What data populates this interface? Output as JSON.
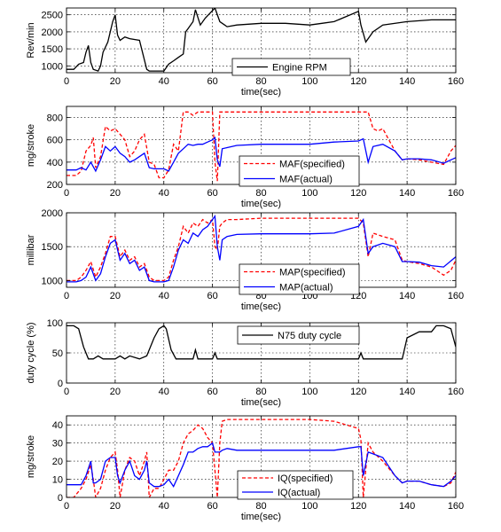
{
  "chart_data": [
    {
      "type": "line",
      "xlabel": "time(sec)",
      "ylabel": "Rev/min",
      "xlim": [
        0,
        160
      ],
      "ylim": [
        800,
        2700
      ],
      "xticks": [
        0,
        20,
        40,
        60,
        80,
        100,
        120,
        140,
        160
      ],
      "yticks": [
        1000,
        1500,
        2000,
        2500
      ],
      "grid": true,
      "legend_position": "bottom-center",
      "series": [
        {
          "name": "Engine RPM",
          "color": "#000000",
          "dash": "solid",
          "x": [
            0,
            3,
            5,
            7,
            8,
            9,
            10,
            11,
            13,
            14,
            15,
            17,
            19,
            20,
            21,
            22,
            24,
            26,
            30,
            33,
            34,
            37,
            40,
            42,
            44,
            46,
            48,
            49,
            50,
            52,
            53,
            55,
            57,
            59,
            61,
            63,
            66,
            70,
            80,
            90,
            100,
            105,
            110,
            115,
            120,
            121,
            123,
            126,
            130,
            140,
            150,
            160
          ],
          "y": [
            900,
            900,
            1050,
            1100,
            1400,
            1600,
            1100,
            900,
            850,
            1000,
            1400,
            1700,
            2300,
            2500,
            1900,
            1750,
            1850,
            1800,
            1750,
            900,
            850,
            850,
            850,
            1050,
            1150,
            1250,
            1350,
            2000,
            2100,
            2300,
            2650,
            2200,
            2400,
            2550,
            2700,
            2300,
            2150,
            2200,
            2250,
            2250,
            2200,
            2250,
            2300,
            2450,
            2600,
            2200,
            1700,
            2000,
            2200,
            2300,
            2350,
            2350
          ]
        }
      ]
    },
    {
      "type": "line",
      "xlabel": "time(sec)",
      "ylabel": "mg/stroke",
      "xlim": [
        0,
        160
      ],
      "ylim": [
        200,
        900
      ],
      "xticks": [
        0,
        20,
        40,
        60,
        80,
        100,
        120,
        140,
        160
      ],
      "yticks": [
        200,
        400,
        600,
        800
      ],
      "grid": true,
      "legend_position": "bottom-center",
      "series": [
        {
          "name": "MAF(specified)",
          "color": "#ff0000",
          "dash": "dashed",
          "x": [
            0,
            4,
            6,
            8,
            10,
            11,
            12,
            14,
            16,
            18,
            20,
            22,
            24,
            26,
            28,
            30,
            32,
            34,
            36,
            38,
            40,
            42,
            44,
            46,
            48,
            50,
            52,
            54,
            56,
            58,
            60,
            61,
            62,
            63,
            64,
            65,
            70,
            80,
            90,
            100,
            110,
            120,
            122,
            124,
            126,
            128,
            130,
            135,
            138,
            140,
            145,
            150,
            155,
            158,
            160
          ],
          "y": [
            280,
            280,
            320,
            500,
            550,
            620,
            350,
            450,
            720,
            680,
            700,
            650,
            600,
            450,
            500,
            600,
            650,
            400,
            380,
            260,
            260,
            330,
            560,
            500,
            850,
            850,
            820,
            850,
            850,
            850,
            850,
            400,
            230,
            850,
            850,
            850,
            850,
            850,
            850,
            850,
            850,
            850,
            850,
            850,
            700,
            680,
            700,
            500,
            420,
            430,
            420,
            400,
            380,
            500,
            550
          ]
        },
        {
          "name": "MAF(actual)",
          "color": "#0000ff",
          "dash": "solid",
          "x": [
            0,
            4,
            6,
            8,
            10,
            12,
            14,
            16,
            18,
            20,
            22,
            24,
            26,
            28,
            30,
            32,
            34,
            36,
            38,
            40,
            42,
            44,
            46,
            48,
            50,
            52,
            54,
            56,
            58,
            60,
            61,
            62,
            63,
            64,
            66,
            70,
            80,
            90,
            100,
            110,
            120,
            122,
            124,
            126,
            130,
            135,
            138,
            140,
            145,
            150,
            155,
            160
          ],
          "y": [
            330,
            330,
            350,
            330,
            400,
            320,
            420,
            540,
            500,
            540,
            480,
            450,
            400,
            420,
            450,
            480,
            350,
            340,
            340,
            340,
            320,
            400,
            480,
            520,
            560,
            550,
            560,
            560,
            580,
            600,
            620,
            420,
            360,
            520,
            530,
            550,
            560,
            560,
            560,
            580,
            590,
            610,
            400,
            540,
            560,
            500,
            420,
            430,
            430,
            420,
            390,
            440
          ]
        }
      ]
    },
    {
      "type": "line",
      "xlabel": "time(sec)",
      "ylabel": "millibar",
      "xlim": [
        0,
        160
      ],
      "ylim": [
        900,
        2000
      ],
      "xticks": [
        0,
        20,
        40,
        60,
        80,
        100,
        120,
        140,
        160
      ],
      "yticks": [
        1000,
        1500,
        2000
      ],
      "grid": true,
      "legend_position": "bottom-center",
      "series": [
        {
          "name": "MAP(specified)",
          "color": "#ff0000",
          "dash": "dashed",
          "x": [
            0,
            4,
            6,
            8,
            10,
            12,
            14,
            16,
            18,
            20,
            22,
            24,
            26,
            28,
            30,
            32,
            34,
            36,
            38,
            40,
            42,
            44,
            46,
            48,
            50,
            52,
            54,
            56,
            58,
            60,
            61,
            62,
            63,
            64,
            66,
            70,
            80,
            90,
            100,
            110,
            120,
            122,
            124,
            126,
            130,
            135,
            138,
            140,
            145,
            150,
            155,
            158,
            160
          ],
          "y": [
            1000,
            1000,
            1050,
            1150,
            1280,
            1050,
            1200,
            1400,
            1650,
            1650,
            1350,
            1450,
            1300,
            1350,
            1200,
            1250,
            1050,
            1000,
            1000,
            1000,
            1050,
            1300,
            1500,
            1800,
            1700,
            1850,
            1800,
            1900,
            1850,
            1900,
            1500,
            1450,
            1800,
            1850,
            1900,
            1900,
            1920,
            1920,
            1920,
            1920,
            1920,
            1850,
            1350,
            1700,
            1650,
            1600,
            1300,
            1280,
            1250,
            1200,
            1080,
            1150,
            1300
          ]
        },
        {
          "name": "MAP(actual)",
          "color": "#0000ff",
          "dash": "solid",
          "x": [
            0,
            4,
            6,
            8,
            10,
            12,
            14,
            16,
            18,
            20,
            22,
            24,
            26,
            28,
            30,
            32,
            34,
            36,
            38,
            40,
            42,
            44,
            46,
            48,
            50,
            52,
            54,
            56,
            58,
            60,
            61,
            62,
            63,
            64,
            66,
            70,
            80,
            90,
            100,
            110,
            120,
            122,
            124,
            126,
            130,
            135,
            138,
            140,
            145,
            150,
            155,
            160
          ],
          "y": [
            980,
            980,
            1000,
            1050,
            1200,
            1000,
            1100,
            1350,
            1550,
            1600,
            1300,
            1400,
            1250,
            1300,
            1150,
            1200,
            1000,
            980,
            980,
            980,
            1000,
            1200,
            1450,
            1600,
            1550,
            1700,
            1650,
            1750,
            1800,
            1900,
            1950,
            1500,
            1300,
            1600,
            1650,
            1680,
            1690,
            1690,
            1690,
            1700,
            1800,
            1900,
            1400,
            1500,
            1550,
            1500,
            1280,
            1280,
            1270,
            1220,
            1200,
            1350
          ]
        }
      ]
    },
    {
      "type": "line",
      "xlabel": "time(sec)",
      "ylabel": "duty cycle (%)",
      "xlim": [
        0,
        160
      ],
      "ylim": [
        0,
        100
      ],
      "xticks": [
        0,
        20,
        40,
        60,
        80,
        100,
        120,
        140,
        160
      ],
      "yticks": [
        0,
        50,
        100
      ],
      "grid": true,
      "legend_position": "top-center",
      "series": [
        {
          "name": "N75 duty cycle",
          "color": "#000000",
          "dash": "solid",
          "x": [
            0,
            3,
            5,
            7,
            9,
            11,
            13,
            15,
            18,
            20,
            22,
            24,
            26,
            30,
            33,
            36,
            38,
            40,
            41,
            43,
            45,
            47,
            50,
            52,
            53,
            54,
            56,
            58,
            60,
            61,
            62,
            64,
            70,
            80,
            90,
            100,
            110,
            120,
            121,
            122,
            123,
            126,
            130,
            135,
            138,
            140,
            145,
            150,
            152,
            155,
            158,
            160
          ],
          "y": [
            95,
            95,
            90,
            60,
            40,
            40,
            45,
            40,
            40,
            40,
            45,
            40,
            45,
            40,
            45,
            75,
            90,
            95,
            90,
            55,
            40,
            40,
            40,
            40,
            55,
            40,
            40,
            40,
            40,
            50,
            40,
            40,
            40,
            40,
            40,
            40,
            40,
            40,
            50,
            40,
            40,
            40,
            40,
            40,
            40,
            75,
            85,
            85,
            95,
            95,
            90,
            60
          ]
        }
      ]
    },
    {
      "type": "line",
      "xlabel": "time(sec)",
      "ylabel": "mg/stroke",
      "xlim": [
        0,
        160
      ],
      "ylim": [
        0,
        45
      ],
      "xticks": [
        0,
        20,
        40,
        60,
        80,
        100,
        120,
        140,
        160
      ],
      "yticks": [
        0,
        10,
        20,
        30,
        40
      ],
      "grid": true,
      "legend_position": "bottom-center",
      "series": [
        {
          "name": "IQ(specified)",
          "color": "#ff0000",
          "dash": "dashed",
          "x": [
            0,
            3,
            6,
            8,
            10,
            11,
            12,
            14,
            16,
            18,
            20,
            21,
            22,
            24,
            26,
            28,
            30,
            32,
            33,
            34,
            36,
            38,
            40,
            42,
            44,
            46,
            48,
            50,
            52,
            54,
            56,
            58,
            60,
            61,
            62,
            63,
            64,
            66,
            70,
            80,
            90,
            100,
            110,
            115,
            120,
            121,
            122,
            124,
            126,
            130,
            135,
            138,
            140,
            145,
            150,
            155,
            158,
            160
          ],
          "y": [
            0,
            0,
            5,
            10,
            18,
            10,
            0,
            5,
            15,
            22,
            25,
            15,
            0,
            15,
            22,
            20,
            12,
            20,
            25,
            0,
            5,
            5,
            10,
            15,
            15,
            20,
            30,
            35,
            37,
            40,
            38,
            33,
            30,
            15,
            0,
            30,
            42,
            43,
            43,
            43,
            43,
            43,
            42,
            40,
            38,
            32,
            0,
            30,
            25,
            20,
            12,
            8,
            9,
            9,
            7,
            6,
            8,
            14
          ]
        },
        {
          "name": "IQ(actual)",
          "color": "#0000ff",
          "dash": "solid",
          "x": [
            0,
            3,
            6,
            8,
            10,
            11,
            12,
            14,
            16,
            18,
            20,
            21,
            22,
            24,
            26,
            28,
            30,
            32,
            33,
            34,
            36,
            38,
            40,
            42,
            44,
            46,
            48,
            50,
            52,
            54,
            56,
            58,
            60,
            61,
            62,
            63,
            64,
            66,
            70,
            80,
            90,
            100,
            110,
            115,
            120,
            121,
            122,
            124,
            126,
            130,
            135,
            138,
            140,
            145,
            150,
            155,
            158,
            160
          ],
          "y": [
            7,
            7,
            7,
            12,
            20,
            8,
            8,
            10,
            20,
            22,
            22,
            12,
            8,
            15,
            20,
            12,
            10,
            15,
            20,
            8,
            6,
            6,
            7,
            10,
            6,
            12,
            18,
            25,
            25,
            27,
            28,
            28,
            30,
            25,
            25,
            25,
            26,
            27,
            26,
            26,
            26,
            26,
            26,
            27,
            28,
            28,
            12,
            25,
            24,
            22,
            12,
            8,
            9,
            9,
            7,
            6,
            9,
            12
          ]
        }
      ]
    }
  ]
}
